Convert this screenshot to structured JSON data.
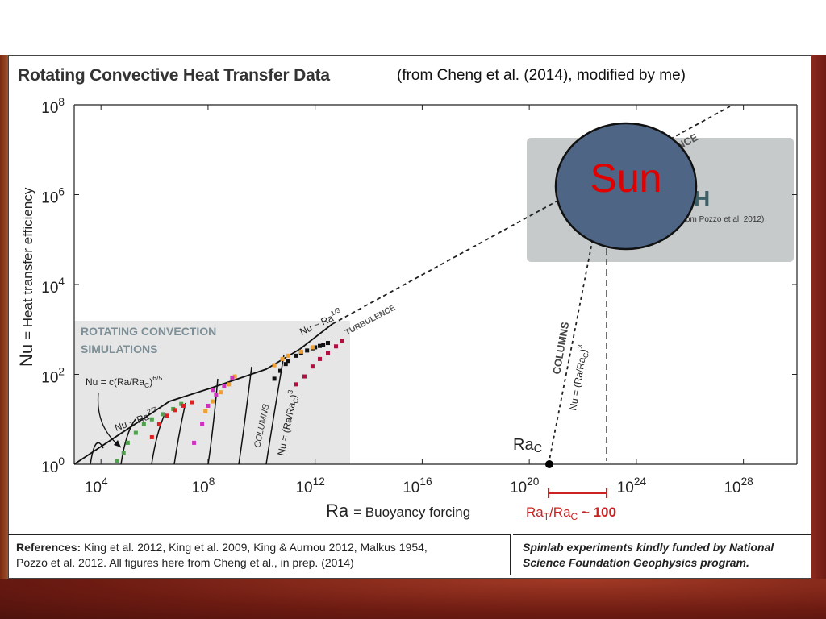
{
  "title": "Rotating Convective Heat Transfer Data",
  "subtitle": "(from Cheng et al. (2014), modified by me)",
  "references": {
    "label": "References:",
    "line1": "King et al. 2012, King et al. 2009, King & Aurnou 2012, Malkus 1954,",
    "line2": "Pozzo et al. 2012.    All figures here from Cheng et al., in prep. (2014)"
  },
  "funding": {
    "line1": "Spinlab experiments kindly funded by National",
    "line2": "Science Foundation Geophysics program."
  },
  "colors": {
    "sim_box": "#e6e6e6",
    "earth_box": "#c7cacb",
    "sun_fill": "#4e6585",
    "sun_text": "#e00000",
    "ratio_bracket": "#cc2222",
    "orange": "#f0a030",
    "magenta": "#d030c0",
    "crimson": "#b01040",
    "green": "#50a050",
    "red": "#e02020"
  },
  "chart_data": {
    "type": "scatter",
    "x_scale": "log",
    "y_scale": "log",
    "xlim": [
      1000.0,
      1e+30
    ],
    "ylim": [
      1,
      100000000.0
    ],
    "x_ticks": [
      {
        "value": 10000.0,
        "base": "10",
        "exp": "4"
      },
      {
        "value": 100000000.0,
        "base": "10",
        "exp": "8"
      },
      {
        "value": 1000000000000.0,
        "base": "10",
        "exp": "12"
      },
      {
        "value": 1e+16,
        "base": "10",
        "exp": "16"
      },
      {
        "value": 1e+20,
        "base": "10",
        "exp": "20"
      },
      {
        "value": 1e+24,
        "base": "10",
        "exp": "24"
      },
      {
        "value": 1e+28,
        "base": "10",
        "exp": "28"
      }
    ],
    "y_ticks": [
      {
        "value": 1,
        "base": "10",
        "exp": "0"
      },
      {
        "value": 100,
        "base": "10",
        "exp": "2"
      },
      {
        "value": 10000.0,
        "base": "10",
        "exp": "4"
      },
      {
        "value": 1000000.0,
        "base": "10",
        "exp": "6"
      },
      {
        "value": 100000000.0,
        "base": "10",
        "exp": "8"
      }
    ],
    "xlabel": {
      "symbol": "Ra",
      "text": "= Buoyancy forcing"
    },
    "ylabel": {
      "symbol": "Nu",
      "text": "= Heat transfer efficiency"
    },
    "annotations": {
      "sim_box_line1": "ROTATING CONVECTION",
      "sim_box_line2": "SIMULATIONS",
      "nu_c": "Nu = c(Ra/Ra",
      "nu_c_sub": "C",
      "nu_c_close": ")",
      "nu_c_exp": "6/5",
      "nu_27": "Nu ~ Ra",
      "nu_27_exp": "2/7",
      "nu_13": "Nu ~ Ra",
      "nu_13_exp": "1/3",
      "turbulence": "TURBULENCE",
      "turbulence_top": "NCE",
      "columns": "COLUMNS",
      "nu_cubed": "Nu = (Ra/Ra",
      "nu_cubed_sub": "C",
      "nu_cubed_close": ")",
      "nu_cubed_exp": "3",
      "earth_letter": "H",
      "earth_ref": "om Pozzo et al. 2012)",
      "sun": "Sun",
      "rac": "Ra",
      "rac_sub": "C",
      "ratio": "Ra",
      "ratio_sub1": "T",
      "ratio_mid": "/Ra",
      "ratio_sub2": "C",
      "ratio_val": " ~ 100"
    },
    "series": [
      {
        "marker": "black",
        "x": [
          30000000000.0,
          50000000000.0,
          80000000000.0,
          100000000000.0,
          200000000000.0,
          300000000000.0,
          500000000000.0,
          800000000000.0,
          1000000000000.0,
          1500000000000.0,
          2000000000000.0,
          3000000000000.0
        ],
        "y": [
          80,
          120,
          170,
          200,
          260,
          300,
          340,
          380,
          400,
          430,
          460,
          500
        ]
      },
      {
        "marker": "orange",
        "x": [
          80000000.0,
          150000000.0,
          300000000.0,
          600000000.0,
          1000000000.0,
          30000000000.0,
          60000000000.0,
          100000000000.0,
          300000000000.0,
          800000000000.0
        ],
        "y": [
          15,
          25,
          40,
          60,
          90,
          160,
          220,
          260,
          320,
          400
        ]
      },
      {
        "marker": "crimson",
        "x": [
          200000000000.0,
          400000000000.0,
          800000000000.0,
          1500000000000.0,
          3000000000000.0,
          6000000000000.0,
          10000000000000.0
        ],
        "y": [
          60,
          90,
          150,
          220,
          300,
          420,
          560
        ]
      },
      {
        "marker": "magenta",
        "x": [
          30000000.0,
          60000000.0,
          100000000.0,
          200000000.0,
          400000000.0,
          800000000.0,
          150000000.0
        ],
        "y": [
          3,
          8,
          20,
          35,
          55,
          85,
          45
        ]
      },
      {
        "marker": "green",
        "x": [
          40000.0,
          70000.0,
          100000.0,
          200000.0,
          400000.0,
          800000.0,
          2000000.0,
          5000000.0,
          10000000.0
        ],
        "y": [
          1.2,
          1.8,
          3,
          5,
          8,
          10,
          13,
          17,
          22
        ]
      },
      {
        "marker": "red",
        "x": [
          800000.0,
          1500000.0,
          3000000.0,
          6000000.0,
          12000000.0,
          25000000.0
        ],
        "y": [
          4,
          8,
          12,
          16,
          20,
          24
        ]
      }
    ]
  }
}
